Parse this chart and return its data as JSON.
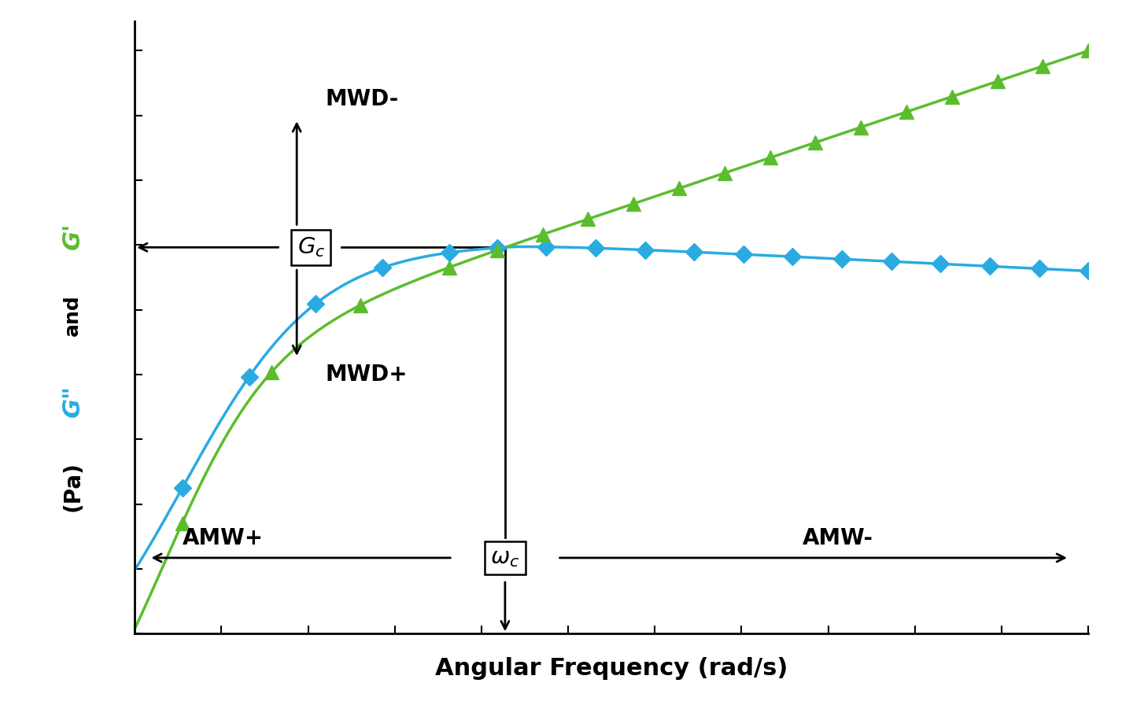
{
  "green_color": "#5BBD2E",
  "blue_color": "#29ABE2",
  "black_color": "#000000",
  "background_color": "#FFFFFF",
  "xlabel": "Angular Frequency (rad/s)",
  "label_fontsize": 20,
  "annotation_fontsize": 19,
  "tick_fontsize": 13,
  "gc_label": "G_c",
  "wc_label": "\\omega_c",
  "mwd_minus": "MWD-",
  "mwd_plus": "MWD+",
  "amw_plus": "AMW+",
  "amw_minus": "AMW-"
}
